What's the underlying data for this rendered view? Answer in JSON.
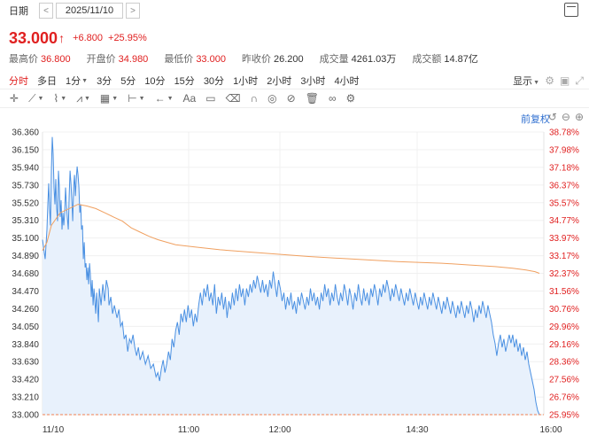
{
  "header": {
    "date_label": "日期",
    "date_value": "2025/11/10",
    "prev": "<",
    "next": ">"
  },
  "quote": {
    "price": "33.000",
    "arrow": "↑",
    "change": "+6.800",
    "change_pct": "+25.95%",
    "stats": [
      {
        "label": "最高价",
        "value": "36.800",
        "tone": "red"
      },
      {
        "label": "开盘价",
        "value": "34.980",
        "tone": "red"
      },
      {
        "label": "最低价",
        "value": "33.000",
        "tone": "red"
      },
      {
        "label": "昨收价",
        "value": "26.200",
        "tone": "blk"
      },
      {
        "label": "成交量",
        "value": "4261.03万",
        "tone": "blk"
      },
      {
        "label": "成交额",
        "value": "14.87亿",
        "tone": "blk"
      }
    ]
  },
  "timeframes": [
    "分时",
    "多日",
    "1分",
    "3分",
    "5分",
    "10分",
    "15分",
    "30分",
    "1小时",
    "2小时",
    "3小时",
    "4小时"
  ],
  "display_label": "显示",
  "adjust_label": "前复权",
  "colors": {
    "up": "#e02020",
    "line": "#4a90e2",
    "avg": "#f0a060",
    "fill": "#e8f1fc",
    "base": "#f08050"
  },
  "chart_data": {
    "type": "line",
    "y_ticks_left": [
      "36.360",
      "36.150",
      "35.940",
      "35.730",
      "35.520",
      "35.310",
      "35.100",
      "34.890",
      "34.680",
      "34.470",
      "34.260",
      "34.050",
      "33.840",
      "33.630",
      "33.420",
      "33.210",
      "33.000"
    ],
    "y_ticks_right": [
      "38.78%",
      "37.98%",
      "37.18%",
      "36.37%",
      "35.57%",
      "34.77%",
      "33.97%",
      "33.17%",
      "32.37%",
      "31.56%",
      "30.76%",
      "29.96%",
      "29.16%",
      "28.36%",
      "27.56%",
      "26.76%",
      "25.95%"
    ],
    "x_ticks": [
      "11/10",
      "11:00",
      "12:00",
      "14:30",
      "16:00"
    ],
    "ylim": [
      33.0,
      36.36
    ],
    "x_range": [
      0,
      565
    ],
    "price_series": [
      [
        0,
        35.08
      ],
      [
        3,
        34.85
      ],
      [
        5,
        35.2
      ],
      [
        6,
        35.5
      ],
      [
        7,
        35.75
      ],
      [
        8,
        35.45
      ],
      [
        9,
        35.25
      ],
      [
        10,
        35.9
      ],
      [
        11,
        36.3
      ],
      [
        12,
        36.1
      ],
      [
        13,
        35.7
      ],
      [
        14,
        35.5
      ],
      [
        15,
        35.8
      ],
      [
        16,
        35.45
      ],
      [
        17,
        35.3
      ],
      [
        18,
        35.9
      ],
      [
        19,
        35.7
      ],
      [
        20,
        35.35
      ],
      [
        21,
        35.55
      ],
      [
        22,
        35.2
      ],
      [
        23,
        35.4
      ],
      [
        24,
        35.25
      ],
      [
        25,
        35.4
      ],
      [
        26,
        35.7
      ],
      [
        27,
        35.5
      ],
      [
        28,
        35.35
      ],
      [
        29,
        35.2
      ],
      [
        30,
        35.6
      ],
      [
        31,
        35.9
      ],
      [
        32,
        35.75
      ],
      [
        33,
        35.55
      ],
      [
        34,
        35.3
      ],
      [
        35,
        35.7
      ],
      [
        36,
        35.85
      ],
      [
        37,
        35.6
      ],
      [
        38,
        35.8
      ],
      [
        39,
        35.95
      ],
      [
        40,
        35.85
      ],
      [
        41,
        35.7
      ],
      [
        42,
        35.4
      ],
      [
        43,
        35.5
      ],
      [
        44,
        35.2
      ],
      [
        45,
        35.25
      ],
      [
        46,
        34.85
      ],
      [
        47,
        35.05
      ],
      [
        48,
        34.75
      ],
      [
        49,
        34.8
      ],
      [
        50,
        34.6
      ],
      [
        51,
        34.75
      ],
      [
        52,
        34.55
      ],
      [
        53,
        34.8
      ],
      [
        54,
        34.65
      ],
      [
        55,
        34.4
      ],
      [
        56,
        34.6
      ],
      [
        57,
        34.3
      ],
      [
        58,
        34.5
      ],
      [
        59,
        34.35
      ],
      [
        60,
        34.2
      ],
      [
        61,
        34.45
      ],
      [
        62,
        34.3
      ],
      [
        63,
        34.1
      ],
      [
        64,
        34.5
      ],
      [
        66,
        34.3
      ],
      [
        68,
        34.55
      ],
      [
        70,
        34.35
      ],
      [
        72,
        34.6
      ],
      [
        74,
        34.5
      ],
      [
        75,
        34.3
      ],
      [
        77,
        34.4
      ],
      [
        79,
        34.2
      ],
      [
        81,
        34.3
      ],
      [
        84,
        34.15
      ],
      [
        86,
        34.25
      ],
      [
        88,
        34.05
      ],
      [
        90,
        34.1
      ],
      [
        92,
        33.9
      ],
      [
        94,
        33.95
      ],
      [
        96,
        33.75
      ],
      [
        98,
        33.9
      ],
      [
        100,
        33.85
      ],
      [
        102,
        33.95
      ],
      [
        104,
        33.8
      ],
      [
        106,
        33.7
      ],
      [
        108,
        33.8
      ],
      [
        110,
        33.65
      ],
      [
        113,
        33.75
      ],
      [
        116,
        33.6
      ],
      [
        119,
        33.7
      ],
      [
        122,
        33.55
      ],
      [
        125,
        33.6
      ],
      [
        128,
        33.45
      ],
      [
        130,
        33.5
      ],
      [
        132,
        33.4
      ],
      [
        134,
        33.55
      ],
      [
        136,
        33.65
      ],
      [
        138,
        33.5
      ],
      [
        140,
        33.6
      ],
      [
        142,
        33.75
      ],
      [
        144,
        33.65
      ],
      [
        146,
        33.9
      ],
      [
        148,
        33.8
      ],
      [
        150,
        34.0
      ],
      [
        152,
        34.1
      ],
      [
        154,
        33.95
      ],
      [
        156,
        34.2
      ],
      [
        158,
        34.1
      ],
      [
        160,
        34.25
      ],
      [
        162,
        34.1
      ],
      [
        164,
        34.3
      ],
      [
        166,
        34.15
      ],
      [
        168,
        34.25
      ],
      [
        170,
        34.05
      ],
      [
        172,
        34.2
      ],
      [
        174,
        34.1
      ],
      [
        176,
        34.3
      ],
      [
        178,
        34.45
      ],
      [
        180,
        34.3
      ],
      [
        182,
        34.5
      ],
      [
        184,
        34.4
      ],
      [
        186,
        34.55
      ],
      [
        188,
        34.35
      ],
      [
        190,
        34.45
      ],
      [
        192,
        34.3
      ],
      [
        194,
        34.55
      ],
      [
        196,
        34.2
      ],
      [
        198,
        34.4
      ],
      [
        200,
        34.3
      ],
      [
        202,
        34.45
      ],
      [
        204,
        34.25
      ],
      [
        206,
        34.4
      ],
      [
        208,
        34.15
      ],
      [
        210,
        34.35
      ],
      [
        212,
        34.25
      ],
      [
        214,
        34.45
      ],
      [
        216,
        34.3
      ],
      [
        218,
        34.5
      ],
      [
        220,
        34.35
      ],
      [
        222,
        34.55
      ],
      [
        224,
        34.4
      ],
      [
        226,
        34.5
      ],
      [
        228,
        34.3
      ],
      [
        230,
        34.5
      ],
      [
        232,
        34.4
      ],
      [
        234,
        34.55
      ],
      [
        236,
        34.45
      ],
      [
        238,
        34.6
      ],
      [
        240,
        34.5
      ],
      [
        242,
        34.65
      ],
      [
        244,
        34.55
      ],
      [
        246,
        34.45
      ],
      [
        248,
        34.6
      ],
      [
        250,
        34.45
      ],
      [
        252,
        34.55
      ],
      [
        254,
        34.4
      ],
      [
        256,
        34.6
      ],
      [
        258,
        34.5
      ],
      [
        260,
        34.7
      ],
      [
        262,
        34.55
      ],
      [
        264,
        34.4
      ],
      [
        266,
        34.6
      ],
      [
        268,
        34.5
      ],
      [
        270,
        34.35
      ],
      [
        272,
        34.45
      ],
      [
        274,
        34.25
      ],
      [
        276,
        34.4
      ],
      [
        278,
        34.3
      ],
      [
        280,
        34.45
      ],
      [
        282,
        34.25
      ],
      [
        284,
        34.35
      ],
      [
        286,
        34.2
      ],
      [
        288,
        34.4
      ],
      [
        290,
        34.3
      ],
      [
        292,
        34.45
      ],
      [
        294,
        34.35
      ],
      [
        296,
        34.25
      ],
      [
        298,
        34.4
      ],
      [
        300,
        34.3
      ],
      [
        302,
        34.5
      ],
      [
        304,
        34.35
      ],
      [
        306,
        34.45
      ],
      [
        308,
        34.3
      ],
      [
        310,
        34.4
      ],
      [
        312,
        34.25
      ],
      [
        314,
        34.45
      ],
      [
        316,
        34.35
      ],
      [
        318,
        34.55
      ],
      [
        320,
        34.4
      ],
      [
        322,
        34.5
      ],
      [
        324,
        34.3
      ],
      [
        326,
        34.45
      ],
      [
        328,
        34.35
      ],
      [
        330,
        34.55
      ],
      [
        332,
        34.4
      ],
      [
        334,
        34.3
      ],
      [
        336,
        34.45
      ],
      [
        338,
        34.35
      ],
      [
        340,
        34.55
      ],
      [
        342,
        34.45
      ],
      [
        344,
        34.3
      ],
      [
        346,
        34.5
      ],
      [
        348,
        34.4
      ],
      [
        350,
        34.25
      ],
      [
        352,
        34.45
      ],
      [
        354,
        34.35
      ],
      [
        356,
        34.55
      ],
      [
        358,
        34.4
      ],
      [
        360,
        34.3
      ],
      [
        362,
        34.5
      ],
      [
        364,
        34.35
      ],
      [
        366,
        34.45
      ],
      [
        368,
        34.3
      ],
      [
        370,
        34.5
      ],
      [
        372,
        34.4
      ],
      [
        374,
        34.55
      ],
      [
        376,
        34.45
      ],
      [
        378,
        34.3
      ],
      [
        380,
        34.5
      ],
      [
        382,
        34.4
      ],
      [
        384,
        34.55
      ],
      [
        386,
        34.45
      ],
      [
        388,
        34.6
      ],
      [
        390,
        34.5
      ],
      [
        392,
        34.35
      ],
      [
        394,
        34.5
      ],
      [
        396,
        34.4
      ],
      [
        398,
        34.55
      ],
      [
        400,
        34.45
      ],
      [
        402,
        34.35
      ],
      [
        404,
        34.5
      ],
      [
        406,
        34.4
      ],
      [
        408,
        34.3
      ],
      [
        410,
        34.45
      ],
      [
        412,
        34.35
      ],
      [
        414,
        34.5
      ],
      [
        416,
        34.4
      ],
      [
        418,
        34.3
      ],
      [
        420,
        34.45
      ],
      [
        422,
        34.35
      ],
      [
        424,
        34.25
      ],
      [
        426,
        34.4
      ],
      [
        428,
        34.3
      ],
      [
        430,
        34.45
      ],
      [
        432,
        34.35
      ],
      [
        434,
        34.25
      ],
      [
        436,
        34.4
      ],
      [
        438,
        34.3
      ],
      [
        440,
        34.45
      ],
      [
        442,
        34.35
      ],
      [
        444,
        34.25
      ],
      [
        446,
        34.4
      ],
      [
        448,
        34.3
      ],
      [
        450,
        34.2
      ],
      [
        452,
        34.35
      ],
      [
        454,
        34.25
      ],
      [
        456,
        34.4
      ],
      [
        458,
        34.3
      ],
      [
        460,
        34.2
      ],
      [
        462,
        34.35
      ],
      [
        464,
        34.25
      ],
      [
        466,
        34.15
      ],
      [
        468,
        34.3
      ],
      [
        470,
        34.2
      ],
      [
        472,
        34.35
      ],
      [
        474,
        34.25
      ],
      [
        476,
        34.15
      ],
      [
        478,
        34.3
      ],
      [
        480,
        34.2
      ],
      [
        482,
        34.35
      ],
      [
        484,
        34.25
      ],
      [
        486,
        34.1
      ],
      [
        488,
        34.25
      ],
      [
        490,
        34.15
      ],
      [
        492,
        34.3
      ],
      [
        494,
        34.2
      ],
      [
        496,
        34.35
      ],
      [
        498,
        34.25
      ],
      [
        500,
        34.15
      ],
      [
        502,
        34.3
      ],
      [
        504,
        34.2
      ],
      [
        506,
        34.1
      ],
      [
        508,
        33.95
      ],
      [
        510,
        33.85
      ],
      [
        512,
        33.7
      ],
      [
        514,
        33.85
      ],
      [
        516,
        33.95
      ],
      [
        518,
        33.8
      ],
      [
        520,
        33.9
      ],
      [
        522,
        33.75
      ],
      [
        524,
        33.85
      ],
      [
        526,
        33.95
      ],
      [
        528,
        33.85
      ],
      [
        530,
        33.95
      ],
      [
        532,
        33.8
      ],
      [
        534,
        33.9
      ],
      [
        536,
        33.75
      ],
      [
        538,
        33.85
      ],
      [
        540,
        33.7
      ],
      [
        542,
        33.8
      ],
      [
        544,
        33.65
      ],
      [
        546,
        33.75
      ],
      [
        548,
        33.6
      ],
      [
        550,
        33.5
      ],
      [
        552,
        33.4
      ],
      [
        554,
        33.3
      ],
      [
        556,
        33.15
      ],
      [
        558,
        33.05
      ],
      [
        560,
        33.0
      ]
    ],
    "avg_series": [
      [
        0,
        34.95
      ],
      [
        5,
        35.05
      ],
      [
        10,
        35.25
      ],
      [
        20,
        35.4
      ],
      [
        30,
        35.45
      ],
      [
        40,
        35.5
      ],
      [
        50,
        35.48
      ],
      [
        60,
        35.45
      ],
      [
        70,
        35.4
      ],
      [
        80,
        35.35
      ],
      [
        90,
        35.3
      ],
      [
        100,
        35.22
      ],
      [
        110,
        35.17
      ],
      [
        120,
        35.12
      ],
      [
        130,
        35.08
      ],
      [
        140,
        35.05
      ],
      [
        150,
        35.02
      ],
      [
        175,
        34.99
      ],
      [
        200,
        34.96
      ],
      [
        250,
        34.92
      ],
      [
        300,
        34.88
      ],
      [
        350,
        34.85
      ],
      [
        400,
        34.82
      ],
      [
        450,
        34.8
      ],
      [
        480,
        34.78
      ],
      [
        510,
        34.76
      ],
      [
        530,
        34.74
      ],
      [
        545,
        34.72
      ],
      [
        555,
        34.7
      ],
      [
        560,
        34.68
      ]
    ]
  }
}
